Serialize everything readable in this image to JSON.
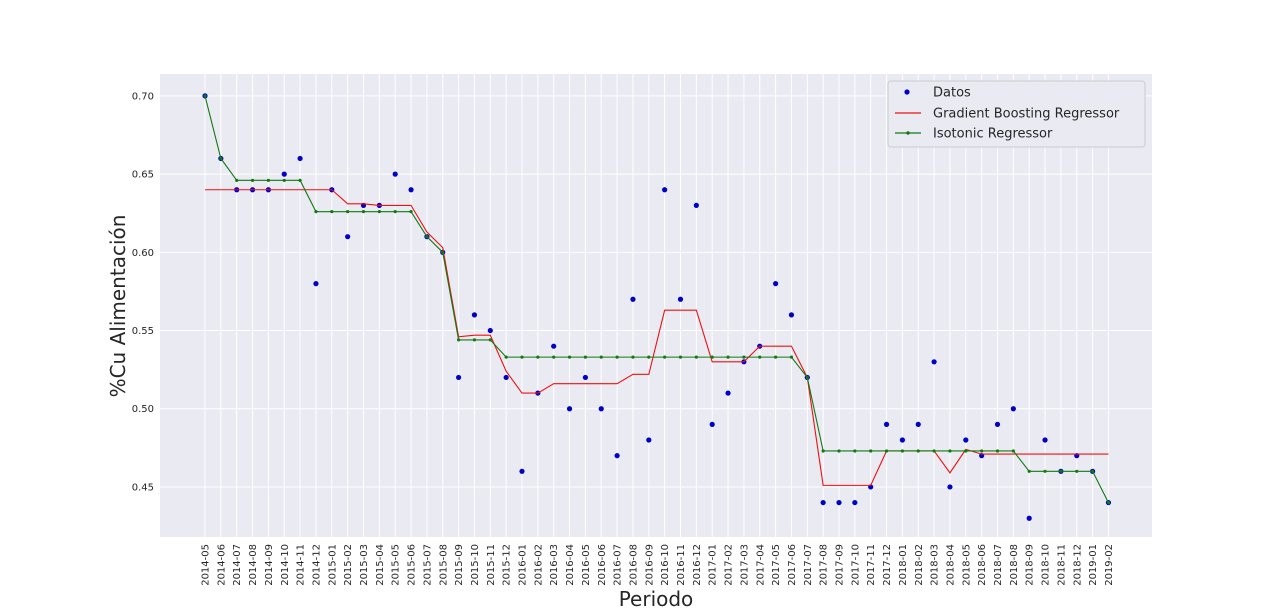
{
  "chart_data": {
    "type": "line",
    "title": "",
    "xlabel": "Periodo",
    "ylabel": "%Cu Alimentación",
    "ylim": [
      0.418,
      0.714
    ],
    "yticks": [
      "0.45",
      "0.50",
      "0.55",
      "0.60",
      "0.65",
      "0.70"
    ],
    "grid": true,
    "legend_position": "top-right",
    "categories": [
      "2014-05",
      "2014-06",
      "2014-07",
      "2014-08",
      "2014-09",
      "2014-10",
      "2014-11",
      "2014-12",
      "2015-01",
      "2015-02",
      "2015-03",
      "2015-04",
      "2015-05",
      "2015-06",
      "2015-07",
      "2015-08",
      "2015-09",
      "2015-10",
      "2015-11",
      "2015-12",
      "2016-01",
      "2016-02",
      "2016-03",
      "2016-04",
      "2016-05",
      "2016-06",
      "2016-07",
      "2016-08",
      "2016-09",
      "2016-10",
      "2016-11",
      "2016-12",
      "2017-01",
      "2017-02",
      "2017-03",
      "2017-04",
      "2017-05",
      "2017-06",
      "2017-07",
      "2017-08",
      "2017-09",
      "2017-10",
      "2017-11",
      "2017-12",
      "2018-01",
      "2018-02",
      "2018-03",
      "2018-04",
      "2018-05",
      "2018-06",
      "2018-07",
      "2018-08",
      "2018-09",
      "2018-10",
      "2018-11",
      "2018-12",
      "2019-01",
      "2019-02"
    ],
    "series": [
      {
        "name": "Datos",
        "style": "scatter",
        "color": "#0000cc",
        "values": [
          0.7,
          0.66,
          0.64,
          0.64,
          0.64,
          0.65,
          0.66,
          0.58,
          0.64,
          0.61,
          0.63,
          0.63,
          0.65,
          0.64,
          0.61,
          0.6,
          0.52,
          0.56,
          0.55,
          0.52,
          0.46,
          0.51,
          0.54,
          0.5,
          0.52,
          0.5,
          0.47,
          0.57,
          0.48,
          0.64,
          0.57,
          0.63,
          0.49,
          0.51,
          0.53,
          0.54,
          0.58,
          0.56,
          0.52,
          0.44,
          0.44,
          0.44,
          0.45,
          0.49,
          0.48,
          0.49,
          0.53,
          0.45,
          0.48,
          0.47,
          0.49,
          0.5,
          0.43,
          0.48,
          0.46,
          0.47,
          0.46,
          0.44
        ]
      },
      {
        "name": "Gradient Boosting Regressor",
        "style": "line",
        "color": "#ee1111",
        "values": [
          0.64,
          0.64,
          0.64,
          0.64,
          0.64,
          0.64,
          0.64,
          0.64,
          0.64,
          0.631,
          0.631,
          0.63,
          0.63,
          0.63,
          0.613,
          0.603,
          0.546,
          0.547,
          0.547,
          0.524,
          0.51,
          0.51,
          0.516,
          0.516,
          0.516,
          0.516,
          0.516,
          0.522,
          0.522,
          0.563,
          0.563,
          0.563,
          0.53,
          0.53,
          0.53,
          0.54,
          0.54,
          0.54,
          0.52,
          0.451,
          0.451,
          0.451,
          0.451,
          0.473,
          0.473,
          0.473,
          0.473,
          0.459,
          0.474,
          0.471,
          0.471,
          0.471,
          0.471,
          0.471,
          0.471,
          0.471,
          0.471,
          0.471
        ]
      },
      {
        "name": "Isotonic Regressor",
        "style": "line-marker",
        "color": "#117a11",
        "values": [
          0.7,
          0.66,
          0.646,
          0.646,
          0.646,
          0.646,
          0.646,
          0.626,
          0.626,
          0.626,
          0.626,
          0.626,
          0.626,
          0.626,
          0.61,
          0.6,
          0.544,
          0.544,
          0.544,
          0.533,
          0.533,
          0.533,
          0.533,
          0.533,
          0.533,
          0.533,
          0.533,
          0.533,
          0.533,
          0.533,
          0.533,
          0.533,
          0.533,
          0.533,
          0.533,
          0.533,
          0.533,
          0.533,
          0.52,
          0.473,
          0.473,
          0.473,
          0.473,
          0.473,
          0.473,
          0.473,
          0.473,
          0.473,
          0.473,
          0.473,
          0.473,
          0.473,
          0.46,
          0.46,
          0.46,
          0.46,
          0.46,
          0.44
        ]
      }
    ]
  }
}
